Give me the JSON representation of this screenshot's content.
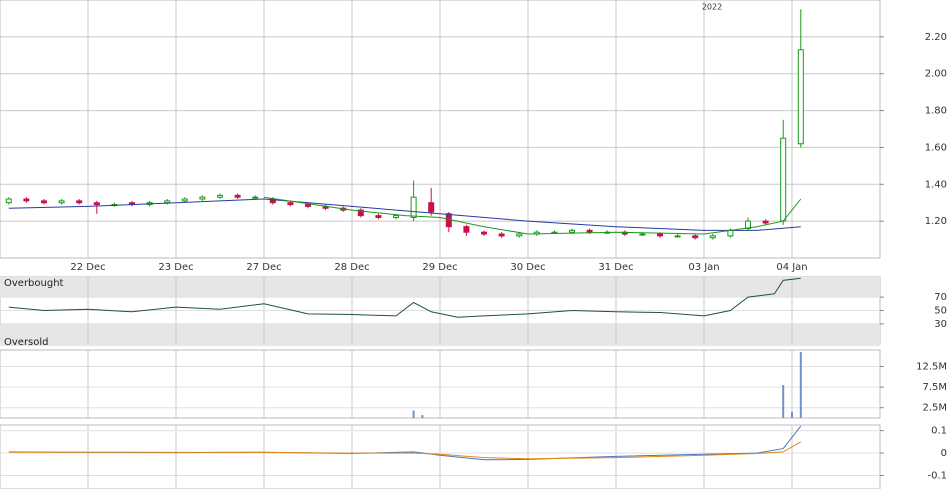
{
  "chart_data": [
    {
      "type": "candlestick",
      "annotation": "2022",
      "x": [
        1,
        3,
        5,
        7,
        9,
        11,
        13,
        15,
        17,
        19,
        21,
        23,
        25,
        27,
        29,
        31,
        33,
        35,
        37,
        39,
        41,
        43,
        45,
        47,
        49,
        51,
        53,
        55,
        57,
        59,
        61,
        63,
        65,
        67,
        69,
        71,
        73,
        75,
        77,
        79,
        81,
        83,
        85,
        87,
        89,
        91
      ],
      "open": [
        1.3,
        1.32,
        1.31,
        1.3,
        1.31,
        1.3,
        1.29,
        1.3,
        1.29,
        1.3,
        1.31,
        1.32,
        1.33,
        1.34,
        1.33,
        1.32,
        1.3,
        1.29,
        1.28,
        1.27,
        1.26,
        1.23,
        1.22,
        1.22,
        1.3,
        1.24,
        1.17,
        1.14,
        1.13,
        1.12,
        1.13,
        1.14,
        1.14,
        1.15,
        1.14,
        1.14,
        1.13,
        1.13,
        1.12,
        1.12,
        1.11,
        1.12,
        1.16,
        1.2,
        1.2,
        1.62
      ],
      "high": [
        1.33,
        1.33,
        1.32,
        1.32,
        1.32,
        1.31,
        1.3,
        1.31,
        1.31,
        1.32,
        1.33,
        1.34,
        1.35,
        1.35,
        1.34,
        1.33,
        1.31,
        1.3,
        1.29,
        1.28,
        1.27,
        1.24,
        1.24,
        1.42,
        1.38,
        1.25,
        1.18,
        1.15,
        1.14,
        1.14,
        1.15,
        1.15,
        1.16,
        1.16,
        1.15,
        1.15,
        1.14,
        1.14,
        1.13,
        1.13,
        1.13,
        1.16,
        1.22,
        1.21,
        1.75,
        2.35
      ],
      "low": [
        1.29,
        1.3,
        1.29,
        1.29,
        1.29,
        1.24,
        1.28,
        1.28,
        1.28,
        1.29,
        1.3,
        1.31,
        1.32,
        1.32,
        1.32,
        1.29,
        1.28,
        1.27,
        1.26,
        1.25,
        1.22,
        1.21,
        1.21,
        1.2,
        1.23,
        1.14,
        1.12,
        1.12,
        1.11,
        1.11,
        1.12,
        1.13,
        1.13,
        1.13,
        1.13,
        1.12,
        1.12,
        1.11,
        1.11,
        1.1,
        1.1,
        1.11,
        1.15,
        1.18,
        1.18,
        1.6
      ],
      "close": [
        1.32,
        1.31,
        1.3,
        1.31,
        1.3,
        1.29,
        1.29,
        1.29,
        1.3,
        1.31,
        1.32,
        1.33,
        1.34,
        1.33,
        1.33,
        1.3,
        1.29,
        1.28,
        1.27,
        1.26,
        1.23,
        1.22,
        1.23,
        1.33,
        1.25,
        1.17,
        1.14,
        1.13,
        1.12,
        1.13,
        1.14,
        1.14,
        1.15,
        1.14,
        1.14,
        1.13,
        1.13,
        1.12,
        1.12,
        1.11,
        1.12,
        1.15,
        1.2,
        1.19,
        1.65,
        2.13
      ],
      "up_color": "#1a9a1a",
      "down_color": "#c8104a",
      "series": [
        {
          "color": "#2a3aa0",
          "x": [
            1,
            10,
            20,
            30,
            40,
            50,
            60,
            70,
            80,
            86,
            91
          ],
          "values": [
            1.27,
            1.28,
            1.3,
            1.32,
            1.28,
            1.24,
            1.2,
            1.17,
            1.15,
            1.15,
            1.17
          ]
        },
        {
          "color": "#1a9a1a",
          "x": [
            30,
            40,
            46,
            50,
            55,
            60,
            70,
            80,
            86,
            89,
            91
          ],
          "values": [
            1.33,
            1.26,
            1.23,
            1.22,
            1.17,
            1.13,
            1.14,
            1.13,
            1.17,
            1.2,
            1.32
          ]
        }
      ],
      "xlim": [
        0,
        100
      ],
      "xticks": [
        {
          "value": 10,
          "label": "22 Dec"
        },
        {
          "value": 20,
          "label": "23 Dec"
        },
        {
          "value": 30,
          "label": "27 Dec"
        },
        {
          "value": 40,
          "label": "28 Dec"
        },
        {
          "value": 50,
          "label": "29 Dec"
        },
        {
          "value": 60,
          "label": "30 Dec"
        },
        {
          "value": 70,
          "label": "31 Dec"
        },
        {
          "value": 80,
          "label": "03 Jan"
        },
        {
          "value": 90,
          "label": "04 Jan"
        }
      ],
      "ylim": [
        1.0,
        2.4
      ],
      "yticks": [
        {
          "value": 1.2,
          "label": "1.20"
        },
        {
          "value": 1.4,
          "label": "1.40"
        },
        {
          "value": 1.6,
          "label": "1.60"
        },
        {
          "value": 1.8,
          "label": "1.80"
        },
        {
          "value": 2.0,
          "label": "2.00"
        },
        {
          "value": 2.2,
          "label": "2.20"
        }
      ],
      "grid": true
    },
    {
      "type": "line",
      "upper_label": "Overbought",
      "lower_label": "Oversold",
      "x": [
        1,
        5,
        10,
        15,
        20,
        25,
        30,
        35,
        40,
        45,
        47,
        49,
        52,
        55,
        60,
        65,
        70,
        75,
        80,
        83,
        85,
        88,
        89,
        91
      ],
      "values": [
        55,
        50,
        52,
        48,
        55,
        52,
        60,
        45,
        44,
        42,
        62,
        48,
        40,
        42,
        45,
        50,
        48,
        47,
        42,
        50,
        70,
        75,
        95,
        98
      ],
      "color": "#1f4f4f",
      "band_color": "#e6e6e6",
      "xlim": [
        0,
        100
      ],
      "ylim": [
        0,
        100
      ],
      "yticks": [
        70,
        50,
        30
      ]
    },
    {
      "type": "bar",
      "x": [
        47,
        48,
        89,
        90,
        91
      ],
      "values": [
        1800000,
        700000,
        8000000,
        1500000,
        16000000
      ],
      "color": "#6f93c8",
      "xlim": [
        0,
        100
      ],
      "ylim": [
        0,
        16500000
      ],
      "yticks": [
        {
          "value": 12500000,
          "label": "12.5M"
        },
        {
          "value": 7500000,
          "label": "7.5M"
        },
        {
          "value": 2500000,
          "label": "2.5M"
        }
      ],
      "grid": true
    },
    {
      "type": "line",
      "x": [
        1,
        10,
        20,
        30,
        40,
        47,
        50,
        55,
        60,
        70,
        80,
        86,
        89,
        91
      ],
      "series": [
        {
          "color": "#4a78c0",
          "values": [
            0.005,
            0.003,
            0.002,
            0.004,
            -0.002,
            0.005,
            -0.01,
            -0.03,
            -0.028,
            -0.015,
            -0.005,
            0.0,
            0.02,
            0.12
          ]
        },
        {
          "color": "#e08a1a",
          "values": [
            0.004,
            0.004,
            0.003,
            0.003,
            0.0,
            0.0,
            -0.005,
            -0.02,
            -0.025,
            -0.02,
            -0.01,
            -0.002,
            0.005,
            0.05
          ]
        }
      ],
      "xlim": [
        0,
        100
      ],
      "ylim": [
        -0.16,
        0.125
      ],
      "yticks": [
        0.1,
        0,
        -0.1
      ]
    }
  ]
}
